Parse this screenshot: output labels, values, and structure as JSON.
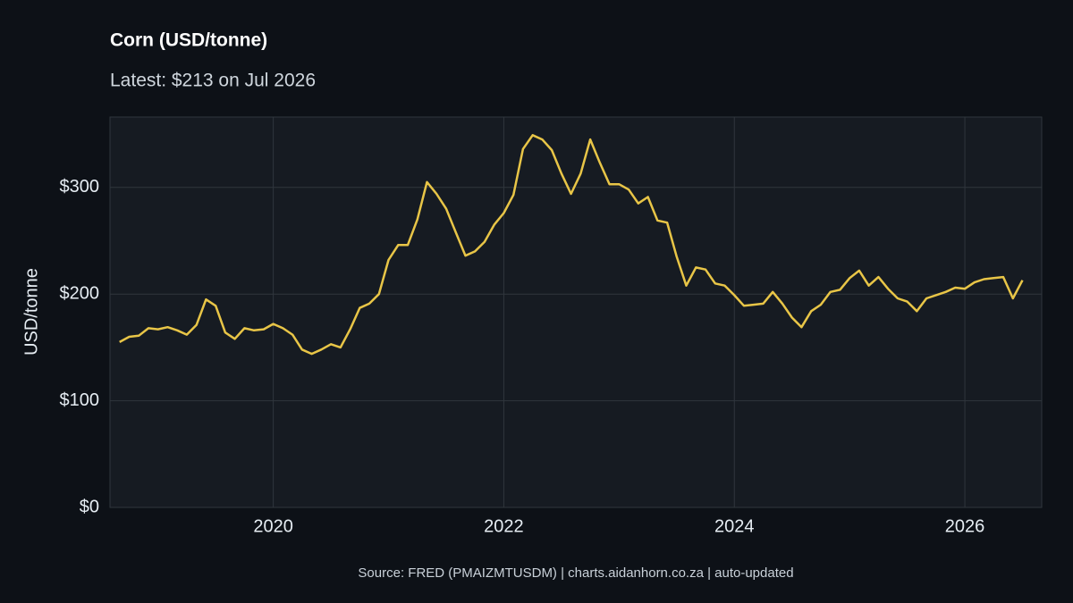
{
  "chart_data": {
    "type": "line",
    "title": "Corn (USD/tonne)",
    "subtitle": "Latest: $213 on Jul 2026",
    "y_label": "USD/tonne",
    "source": "Source: FRED (PMAIZMTUSDM) | charts.aidanhorn.co.za | auto-updated",
    "x": [
      "2018-09",
      "2018-10",
      "2018-11",
      "2018-12",
      "2019-01",
      "2019-02",
      "2019-03",
      "2019-04",
      "2019-05",
      "2019-06",
      "2019-07",
      "2019-08",
      "2019-09",
      "2019-10",
      "2019-11",
      "2019-12",
      "2020-01",
      "2020-02",
      "2020-03",
      "2020-04",
      "2020-05",
      "2020-06",
      "2020-07",
      "2020-08",
      "2020-09",
      "2020-10",
      "2020-11",
      "2020-12",
      "2021-01",
      "2021-02",
      "2021-03",
      "2021-04",
      "2021-05",
      "2021-06",
      "2021-07",
      "2021-08",
      "2021-09",
      "2021-10",
      "2021-11",
      "2021-12",
      "2022-01",
      "2022-02",
      "2022-03",
      "2022-04",
      "2022-05",
      "2022-06",
      "2022-07",
      "2022-08",
      "2022-09",
      "2022-10",
      "2022-11",
      "2022-12",
      "2023-01",
      "2023-02",
      "2023-03",
      "2023-04",
      "2023-05",
      "2023-06",
      "2023-07",
      "2023-08",
      "2023-09",
      "2023-10",
      "2023-11",
      "2023-12",
      "2024-01",
      "2024-02",
      "2024-03",
      "2024-04",
      "2024-05",
      "2024-06",
      "2024-07",
      "2024-08",
      "2024-09",
      "2024-10",
      "2024-11",
      "2024-12",
      "2025-01",
      "2025-02",
      "2025-03",
      "2025-04",
      "2025-05",
      "2025-06",
      "2025-07",
      "2025-08",
      "2025-09",
      "2025-10",
      "2025-11",
      "2025-12",
      "2026-01",
      "2026-02",
      "2026-03",
      "2026-04",
      "2026-05",
      "2026-06",
      "2026-07"
    ],
    "series": [
      {
        "name": "Corn",
        "color": "#e8c547",
        "values": [
          155,
          160,
          161,
          168,
          167,
          169,
          166,
          162,
          171,
          195,
          189,
          164,
          158,
          168,
          166,
          167,
          172,
          168,
          162,
          148,
          144,
          148,
          153,
          150,
          167,
          187,
          191,
          200,
          232,
          246,
          246,
          270,
          305,
          294,
          280,
          258,
          236,
          240,
          249,
          265,
          276,
          293,
          336,
          349,
          345,
          335,
          313,
          294,
          313,
          345,
          323,
          303,
          303,
          298,
          285,
          291,
          269,
          267,
          235,
          208,
          225,
          223,
          210,
          208,
          199,
          189,
          190,
          191,
          202,
          191,
          178,
          169,
          184,
          190,
          202,
          204,
          215,
          222,
          208,
          216,
          205,
          196,
          193,
          184,
          196,
          199,
          202,
          206,
          205,
          211,
          214,
          215,
          216,
          196,
          213
        ]
      }
    ],
    "xlim": [
      "2018-08",
      "2026-09"
    ],
    "xticks": [
      2020,
      2022,
      2024,
      2026
    ],
    "ylim": [
      0,
      366
    ],
    "yticks": [
      {
        "value": 0,
        "label": "$0"
      },
      {
        "value": 100,
        "label": "$100"
      },
      {
        "value": 200,
        "label": "$200"
      },
      {
        "value": 300,
        "label": "$300"
      }
    ],
    "grid": true
  }
}
